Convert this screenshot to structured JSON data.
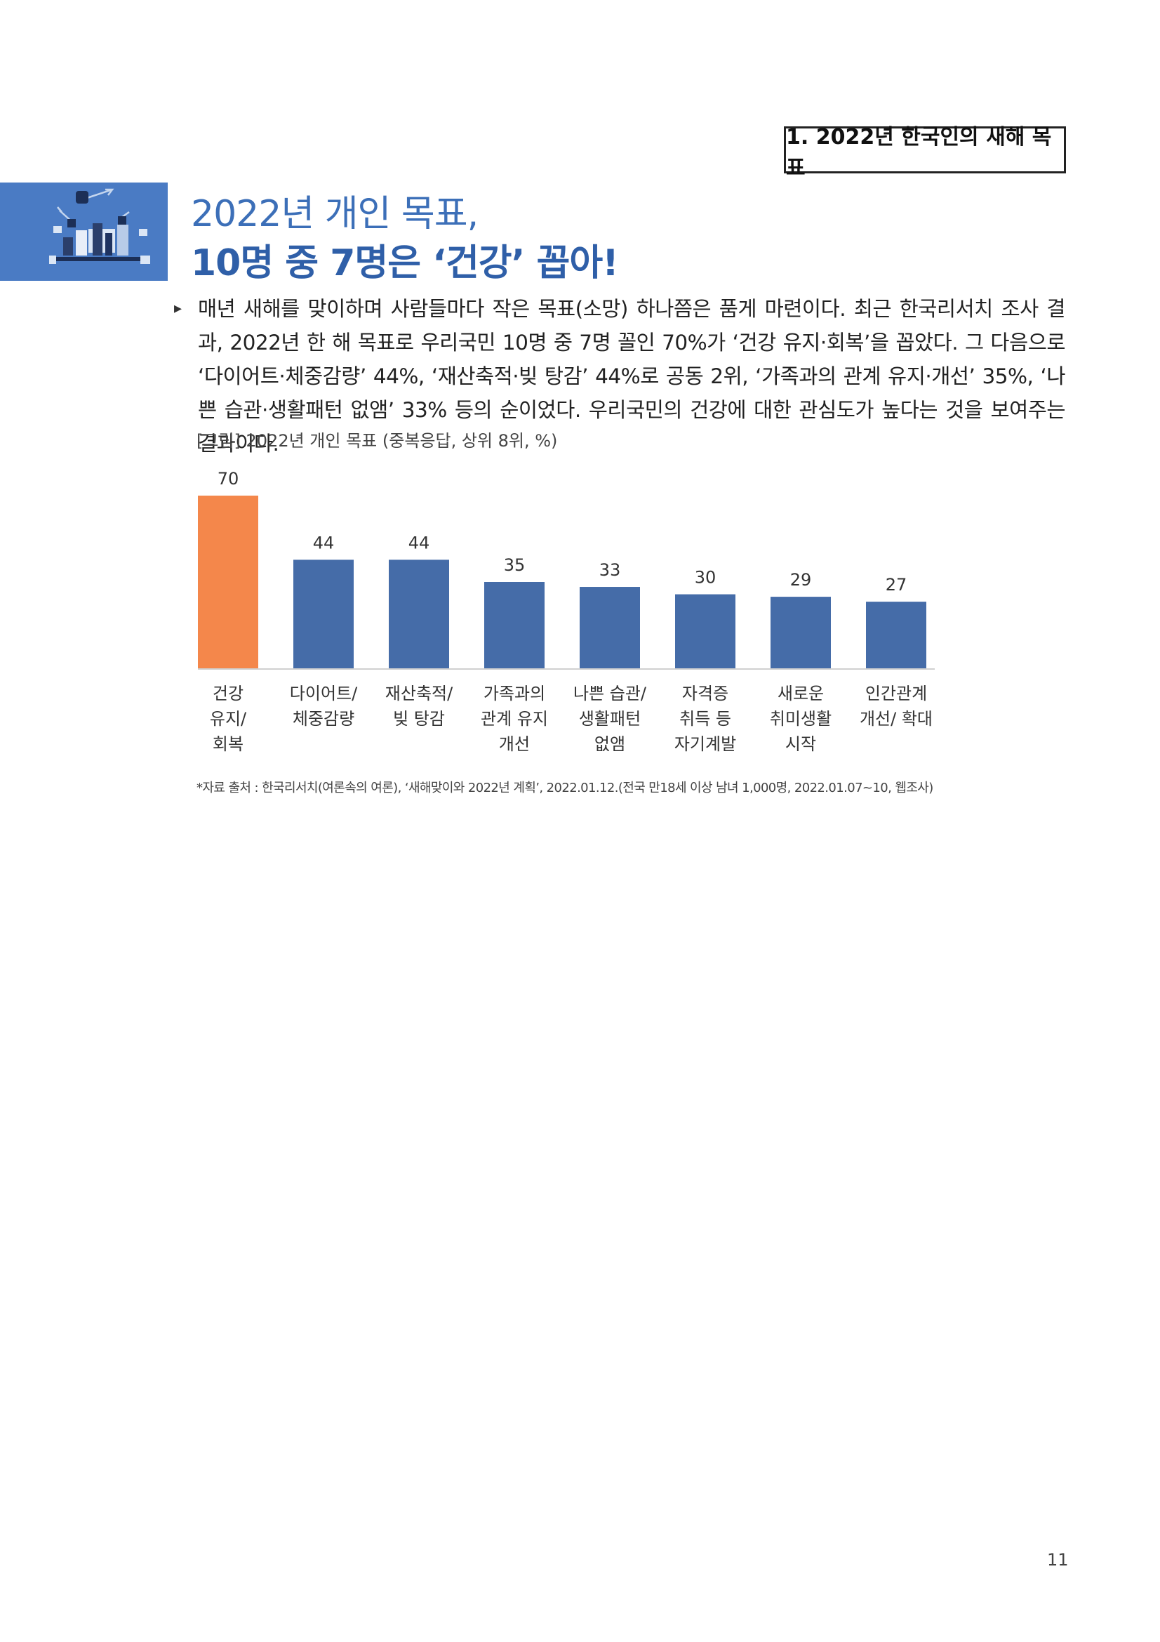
{
  "section_tag": "1. 2022년 한국인의 새해 목표",
  "title_line1": "2022년 개인 목표,",
  "title_line2": "10명 중 7명은 ‘건강’ 꼽아!",
  "body_text": "매년 새해를 맞이하며 사람들마다 작은 목표(소망) 하나쯤은 품게 마련이다. 최근 한국리서치 조사 결과, 2022년 한 해 목표로 우리국민 10명 중 7명 꼴인 70%가 ‘건강 유지·회복’을 꼽았다. 그 다음으로 ‘다이어트·체중감량’ 44%, ‘재산축적·빚 탕감’ 44%로 공동 2위, ‘가족과의 관계 유지·개선’ 35%, ‘나쁜 습관·생활패턴 없앰’ 33% 등의 순이었다. 우리국민의 건강에 대한 관심도가 높다는 것을 보여주는 결과이다.",
  "figure_caption": "[그림] 2022년 개인 목표 (중복응답, 상위 8위, %)",
  "colors": {
    "highlight_bar": "#f4874b",
    "bar": "#456ca8",
    "header_block": "#4a7bc4",
    "title_blue": "#2f5fa8"
  },
  "chart_data": {
    "type": "bar",
    "categories": [
      [
        "건강",
        "유지/",
        "회복"
      ],
      [
        "다이어트/",
        "체중감량"
      ],
      [
        "재산축적/",
        "빚 탕감"
      ],
      [
        "가족과의",
        "관계 유지",
        "개선"
      ],
      [
        "나쁜 습관/",
        "생활패턴",
        "없앰"
      ],
      [
        "자격증",
        "취득 등",
        "자기계발"
      ],
      [
        "새로운",
        "취미생활",
        "시작"
      ],
      [
        "인간관계",
        "개선/ 확대"
      ]
    ],
    "values": [
      70,
      44,
      44,
      35,
      33,
      30,
      29,
      27
    ],
    "highlight_index": 0,
    "ylim": [
      0,
      70
    ],
    "grid": false,
    "legend": "none"
  },
  "source_note": "*자료 출처 : 한국리서치(여론속의 여론), ‘새해맞이와 2022년 계획’, 2022.01.12.(전국 만18세 이상 남녀 1,000명, 2022.01.07~10, 웹조사)",
  "page_number": "11"
}
